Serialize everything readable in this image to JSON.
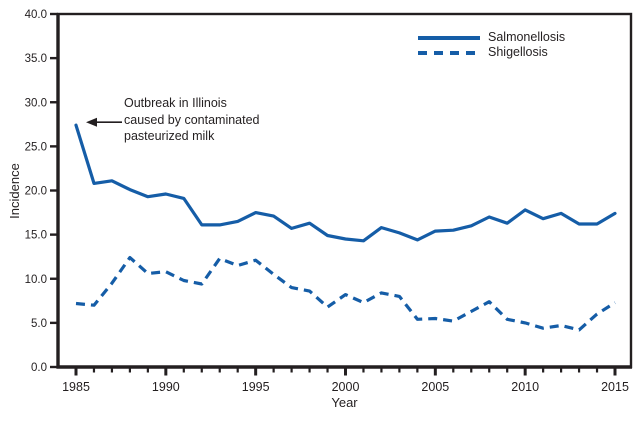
{
  "figure": {
    "background": "#ffffff"
  },
  "colors": {
    "series": "#155da7",
    "axis": "#231f20",
    "text": "#231f20"
  },
  "axes": {
    "x_label": "Year",
    "y_label": "Incidence",
    "y_tick_labels": [
      "0.0",
      "5.0",
      "10.0",
      "15.0",
      "20.0",
      "25.0",
      "30.0",
      "35.0",
      "40.0"
    ],
    "x_tick_labels": [
      "1985",
      "1990",
      "1995",
      "2000",
      "2005",
      "2010",
      "2015"
    ]
  },
  "legend": {
    "items": [
      {
        "label": "Salmonellosis",
        "style": "solid"
      },
      {
        "label": "Shigellosis",
        "style": "dashed"
      }
    ]
  },
  "annotation": {
    "text": "Outbreak in Illinois\ncaused by contaminated\npasteurized milk"
  },
  "chart_data": {
    "type": "line",
    "title": "",
    "xlabel": "Year",
    "ylabel": "Incidence",
    "xlim": [
      1985,
      2015
    ],
    "ylim": [
      0,
      40
    ],
    "y_tick_step": 5,
    "x_major_tick_step": 5,
    "x_minor_tick_step": 1,
    "grid": false,
    "legend_position": "top-right",
    "x": [
      1985,
      1986,
      1987,
      1988,
      1989,
      1990,
      1991,
      1992,
      1993,
      1994,
      1995,
      1996,
      1997,
      1998,
      1999,
      2000,
      2001,
      2002,
      2003,
      2004,
      2005,
      2006,
      2007,
      2008,
      2009,
      2010,
      2011,
      2012,
      2013,
      2014,
      2015
    ],
    "series": [
      {
        "name": "Salmonellosis",
        "line_style": "solid",
        "color": "#155da7",
        "values": [
          27.4,
          20.8,
          21.1,
          20.1,
          19.3,
          19.6,
          19.1,
          16.1,
          16.1,
          16.5,
          17.5,
          17.1,
          15.7,
          16.3,
          14.9,
          14.5,
          14.3,
          15.8,
          15.2,
          14.4,
          15.4,
          15.5,
          16.0,
          17.0,
          16.3,
          17.8,
          16.8,
          17.4,
          16.2,
          16.2,
          17.4
        ]
      },
      {
        "name": "Shigellosis",
        "line_style": "dashed",
        "color": "#155da7",
        "values": [
          7.2,
          7.0,
          9.5,
          12.4,
          10.6,
          10.8,
          9.8,
          9.4,
          12.3,
          11.5,
          12.1,
          10.5,
          9.0,
          8.6,
          6.8,
          8.2,
          7.3,
          8.4,
          8.0,
          5.4,
          5.5,
          5.2,
          6.3,
          7.4,
          5.4,
          5.0,
          4.4,
          4.7,
          4.2,
          6.0,
          7.3
        ]
      }
    ],
    "annotations": [
      {
        "text": "Outbreak in Illinois caused by contaminated pasteurized milk",
        "points_to": {
          "x": 1985,
          "y": 27.4
        }
      }
    ]
  }
}
